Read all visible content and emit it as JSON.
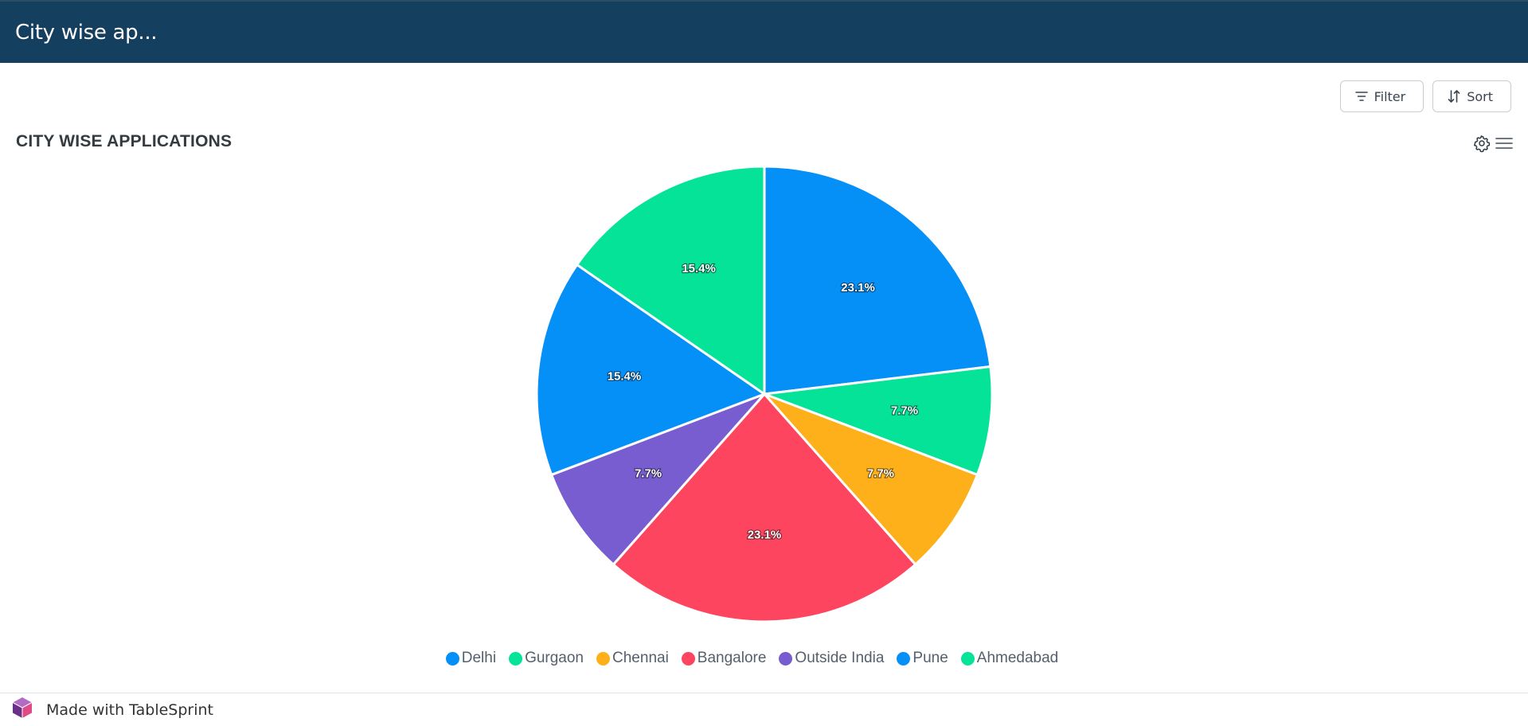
{
  "header": {
    "title": "City wise ap..."
  },
  "toolbar": {
    "filter_label": "Filter",
    "sort_label": "Sort"
  },
  "chart_data": {
    "type": "pie",
    "title": "CITY WISE APPLICATIONS",
    "categories": [
      "Delhi",
      "Gurgaon",
      "Chennai",
      "Bangalore",
      "Outside India",
      "Pune",
      "Ahmedabad"
    ],
    "values": [
      23.1,
      7.7,
      7.7,
      23.1,
      7.7,
      15.4,
      15.4
    ],
    "value_labels": [
      "23.1%",
      "7.7%",
      "7.7%",
      "23.1%",
      "7.7%",
      "15.4%",
      "15.4%"
    ],
    "colors": [
      "#0590f8",
      "#04e397",
      "#fdb01a",
      "#fe455f",
      "#785dd0",
      "#0590f8",
      "#04e397"
    ],
    "legend_position": "bottom-center"
  },
  "footer": {
    "made_with": "Made with TableSprint"
  },
  "icons": {
    "filter": "filter-icon",
    "sort": "sort-icon",
    "settings": "gear-icon",
    "menu": "hamburger-menu-icon",
    "brand": "tablesprint-logo-icon"
  }
}
